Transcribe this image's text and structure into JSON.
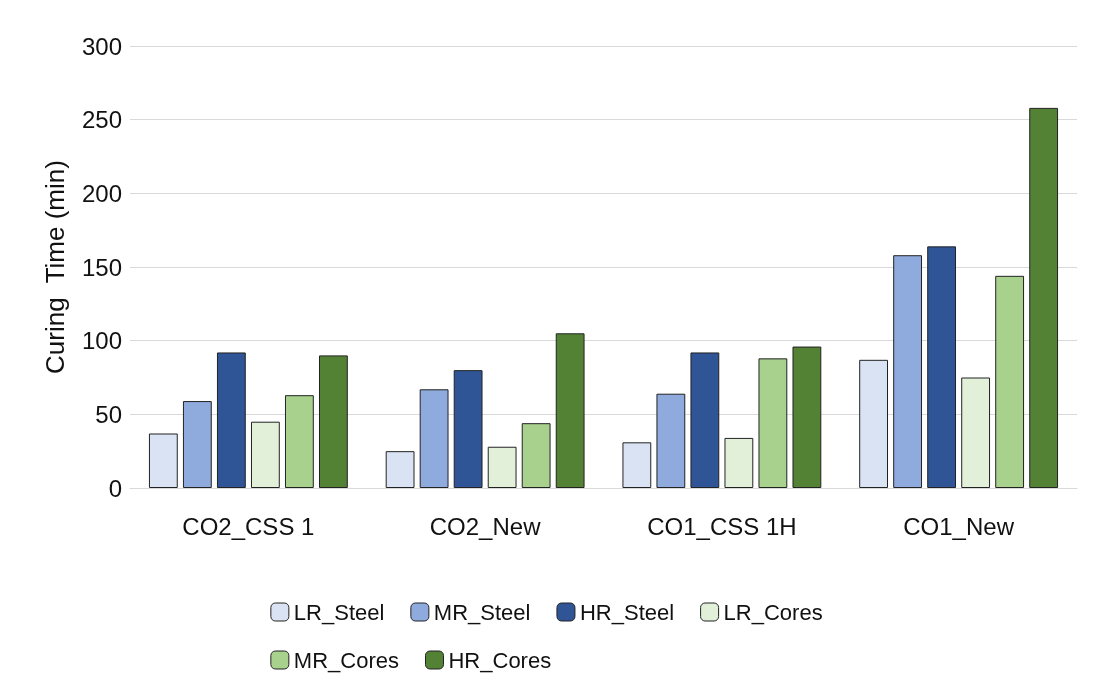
{
  "chart_data": {
    "type": "bar",
    "ylabel": "Curing  Time (min)",
    "categories": [
      "CO2_CSS 1",
      "CO2_New",
      "CO1_CSS 1H",
      "CO1_New"
    ],
    "series": [
      {
        "name": "LR_Steel",
        "color": "#dae3f3",
        "values": [
          37,
          25,
          31,
          87
        ]
      },
      {
        "name": "MR_Steel",
        "color": "#8faadc",
        "values": [
          59,
          67,
          64,
          158
        ]
      },
      {
        "name": "HR_Steel",
        "color": "#2f5597",
        "values": [
          92,
          80,
          92,
          164
        ]
      },
      {
        "name": "LR_Cores",
        "color": "#e2f0d9",
        "values": [
          45,
          28,
          34,
          75
        ]
      },
      {
        "name": "MR_Cores",
        "color": "#a9d18e",
        "values": [
          63,
          44,
          88,
          144
        ]
      },
      {
        "name": "HR_Cores",
        "color": "#548235",
        "values": [
          90,
          105,
          96,
          258
        ]
      }
    ],
    "ylim": [
      0,
      300
    ],
    "yticks": [
      0,
      50,
      100,
      150,
      200,
      250,
      300
    ],
    "grid": "y",
    "legend": "bottom"
  }
}
